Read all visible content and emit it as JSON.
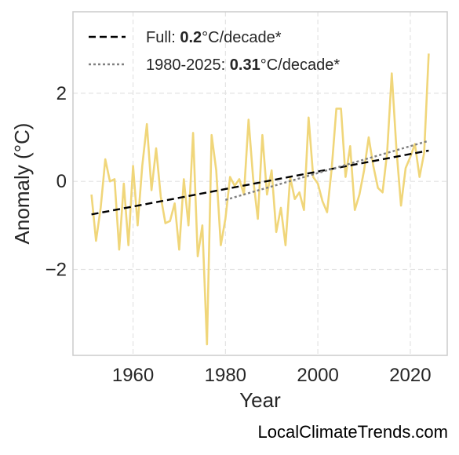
{
  "chart_data": {
    "type": "line",
    "xlabel": "Year",
    "ylabel": "Anomaly (°C)",
    "xlim": [
      1947,
      2028
    ],
    "ylim": [
      -3.95,
      3.85
    ],
    "xticks": [
      1960,
      1980,
      2000,
      2020
    ],
    "yticks": [
      -2,
      0,
      2
    ],
    "ytick_labels": [
      "−2",
      "0",
      "2"
    ],
    "grid": true,
    "legend_position": "top-left",
    "series": [
      {
        "style": "solid",
        "color": "#f0d67a",
        "x": [
          1951,
          1952,
          1953,
          1954,
          1955,
          1956,
          1957,
          1958,
          1959,
          1960,
          1961,
          1962,
          1963,
          1964,
          1965,
          1966,
          1967,
          1968,
          1969,
          1970,
          1971,
          1972,
          1973,
          1974,
          1975,
          1976,
          1977,
          1978,
          1979,
          1980,
          1981,
          1982,
          1983,
          1984,
          1985,
          1986,
          1987,
          1988,
          1989,
          1990,
          1991,
          1992,
          1993,
          1994,
          1995,
          1996,
          1997,
          1998,
          1999,
          2000,
          2001,
          2002,
          2003,
          2004,
          2005,
          2006,
          2007,
          2008,
          2009,
          2010,
          2011,
          2012,
          2013,
          2014,
          2015,
          2016,
          2017,
          2018,
          2019,
          2020,
          2021,
          2022,
          2023,
          2024
        ],
        "y": [
          -0.3,
          -1.35,
          -0.6,
          0.5,
          0.0,
          0.05,
          -1.55,
          -0.05,
          -1.45,
          0.35,
          -1.0,
          0.35,
          1.3,
          -0.2,
          0.75,
          -0.35,
          -0.95,
          -0.9,
          -0.5,
          -1.55,
          0.05,
          -1.0,
          1.1,
          -1.7,
          -1.0,
          -3.7,
          1.05,
          0.25,
          -1.45,
          -0.85,
          0.1,
          -0.1,
          0.05,
          -0.3,
          1.4,
          0.05,
          -0.85,
          1.05,
          -0.3,
          0.25,
          -1.15,
          -0.6,
          -1.45,
          0.1,
          -0.4,
          -0.25,
          -0.65,
          1.45,
          0.1,
          -0.05,
          -0.45,
          -0.7,
          0.3,
          1.65,
          1.65,
          0.1,
          0.8,
          -0.65,
          -0.3,
          0.25,
          1.0,
          0.35,
          -0.15,
          -0.25,
          0.65,
          2.45,
          0.75,
          -0.55,
          0.3,
          0.55,
          0.85,
          0.1,
          0.65,
          2.9
        ]
      },
      {
        "name": "Full",
        "style": "dashed",
        "color": "#000000",
        "x": [
          1951,
          2024
        ],
        "y": [
          -0.75,
          0.7
        ]
      },
      {
        "name": "1980-2025",
        "style": "dotted",
        "color": "#808080",
        "x": [
          1980,
          2024
        ],
        "y": [
          -0.42,
          0.92
        ]
      }
    ],
    "legend": [
      {
        "prefix": "Full: ",
        "value": "0.2",
        "suffix": "°C/decade*",
        "style": "dashed",
        "color": "#000000"
      },
      {
        "prefix": "1980-2025: ",
        "value": "0.31",
        "suffix": "°C/decade*",
        "style": "dotted",
        "color": "#808080"
      }
    ]
  },
  "watermark": "LocalClimateTrends.com"
}
